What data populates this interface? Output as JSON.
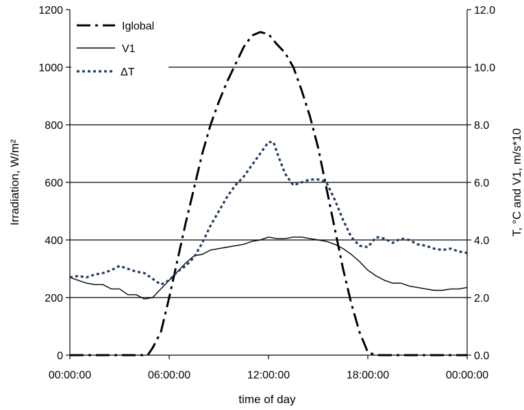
{
  "chart_data": {
    "type": "line",
    "title": "",
    "xlabel": "time of day",
    "ylabel_left": "Irradiation, W/m²",
    "ylabel_right": "T, °C and V1, m/s*10",
    "x_ticks": [
      "00:00:00",
      "06:00:00",
      "12:00:00",
      "18:00:00",
      "00:00:00"
    ],
    "x_range_hours": [
      0,
      24
    ],
    "ylim_left": [
      0,
      1200
    ],
    "yticks_left": [
      "0",
      "200",
      "400",
      "600",
      "800",
      "1000",
      "1200"
    ],
    "ylim_right": [
      0,
      12
    ],
    "yticks_right": [
      "0.0",
      "2.0",
      "4.0",
      "6.0",
      "8.0",
      "10.0",
      "12.0"
    ],
    "grid": "horizontal",
    "legend_position": "top-left",
    "series": [
      {
        "name": "Iglobal",
        "axis": "left",
        "style": "dash-dot",
        "color": "#000000",
        "x": [
          0,
          4,
          4.7,
          5,
          5.5,
          6,
          6.5,
          7,
          7.5,
          8,
          8.5,
          9,
          9.5,
          10,
          10.5,
          11,
          11.5,
          12,
          12.5,
          13,
          13.5,
          14,
          14.5,
          15,
          15.5,
          16,
          16.5,
          17,
          17.5,
          18,
          18.5,
          24
        ],
        "y": [
          0,
          0,
          0,
          25,
          80,
          200,
          330,
          460,
          580,
          700,
          800,
          880,
          950,
          1010,
          1070,
          1110,
          1122,
          1115,
          1080,
          1050,
          1000,
          920,
          830,
          720,
          580,
          440,
          300,
          180,
          80,
          10,
          0,
          0
        ]
      },
      {
        "name": "V1",
        "axis": "right",
        "style": "solid",
        "color": "#000000",
        "x": [
          0,
          0.5,
          1,
          1.5,
          2,
          2.5,
          3,
          3.5,
          4,
          4.5,
          5,
          5.5,
          6,
          6.5,
          7,
          7.5,
          8,
          8.5,
          9,
          9.5,
          10,
          10.5,
          11,
          11.5,
          12,
          12.5,
          13,
          13.5,
          14,
          14.5,
          15,
          15.5,
          16,
          16.5,
          17,
          17.5,
          18,
          18.5,
          19,
          19.5,
          20,
          20.5,
          21,
          21.5,
          22,
          22.5,
          23,
          23.5,
          24
        ],
        "y": [
          2.7,
          2.6,
          2.5,
          2.45,
          2.45,
          2.3,
          2.3,
          2.1,
          2.1,
          1.95,
          2.0,
          2.3,
          2.6,
          2.9,
          3.2,
          3.45,
          3.5,
          3.65,
          3.7,
          3.75,
          3.8,
          3.85,
          3.95,
          4.0,
          4.1,
          4.05,
          4.05,
          4.1,
          4.1,
          4.05,
          4.0,
          3.95,
          3.85,
          3.7,
          3.5,
          3.25,
          2.95,
          2.75,
          2.6,
          2.5,
          2.5,
          2.4,
          2.35,
          2.3,
          2.25,
          2.25,
          2.3,
          2.3,
          2.35
        ]
      },
      {
        "name": "ΔT",
        "axis": "right",
        "style": "dotted",
        "color": "#1f3a64",
        "x": [
          0,
          0.5,
          1,
          1.5,
          2,
          2.5,
          3,
          3.5,
          4,
          4.5,
          5,
          5.5,
          6,
          6.5,
          7,
          7.5,
          8,
          8.5,
          9,
          9.5,
          10,
          10.5,
          11,
          11.5,
          12,
          12.3,
          12.6,
          13,
          13.5,
          14,
          14.5,
          15,
          15.5,
          16,
          16.5,
          17,
          17.5,
          18,
          18.5,
          19,
          19.5,
          20,
          20.5,
          21,
          21.5,
          22,
          22.5,
          23,
          23.5,
          24
        ],
        "y": [
          2.7,
          2.75,
          2.7,
          2.8,
          2.85,
          2.95,
          3.1,
          3.0,
          2.9,
          2.85,
          2.65,
          2.45,
          2.6,
          2.9,
          3.1,
          3.4,
          3.9,
          4.5,
          5.0,
          5.5,
          5.9,
          6.2,
          6.6,
          7.0,
          7.4,
          7.4,
          6.9,
          6.3,
          5.9,
          6.0,
          6.1,
          6.1,
          6.0,
          5.4,
          4.7,
          4.1,
          3.8,
          3.75,
          4.1,
          4.05,
          3.9,
          4.05,
          4.0,
          3.85,
          3.8,
          3.7,
          3.65,
          3.7,
          3.6,
          3.55
        ]
      }
    ]
  }
}
